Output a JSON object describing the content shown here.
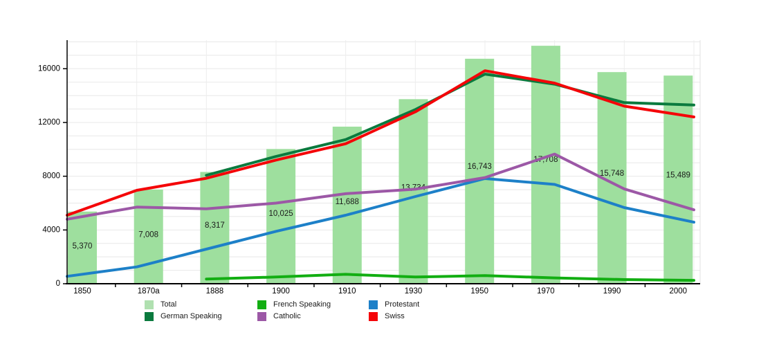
{
  "chart_data": {
    "type": "combo-bar-line",
    "title": "",
    "xlabel": "",
    "ylabel": "",
    "categories": [
      "1850",
      "1870a",
      "1888",
      "1900",
      "1910",
      "1930",
      "1950",
      "1970",
      "1990",
      "2000"
    ],
    "ylim": [
      0,
      18000
    ],
    "yticks": [
      {
        "value": 0,
        "label": "0"
      },
      {
        "value": 4000,
        "label": "4000"
      },
      {
        "value": 8000,
        "label": "8000"
      },
      {
        "value": 12000,
        "label": "12000"
      },
      {
        "value": 16000,
        "label": "16000"
      }
    ],
    "grid": {
      "horizontal_every": 1000,
      "vertical": true
    },
    "bars": {
      "name": "Total",
      "color": "#9edf9e",
      "values": [
        5370,
        7008,
        8317,
        10025,
        11688,
        13734,
        16743,
        17708,
        15748,
        15489
      ],
      "labels": [
        "5,370",
        "7,008",
        "8,317",
        "10,025",
        "11,688",
        "13,734",
        "16,743",
        "17,708",
        "15,748",
        "15,489"
      ]
    },
    "series": [
      {
        "name": "French Speaking",
        "color": "#12ae12",
        "values": [
          null,
          null,
          350,
          500,
          700,
          500,
          600,
          430,
          310,
          250
        ]
      },
      {
        "name": "Protestant",
        "color": "#1d80c8",
        "values": [
          550,
          1250,
          2575,
          3900,
          5100,
          6490,
          7830,
          7390,
          5665,
          4580
        ]
      },
      {
        "name": "Catholic",
        "color": "#9c58a6",
        "values": [
          4800,
          5700,
          5575,
          6000,
          6700,
          7035,
          7900,
          9645,
          7050,
          5500
        ]
      },
      {
        "name": "German Speaking",
        "color": "#0a7a3e",
        "values": [
          null,
          null,
          8070,
          9470,
          10725,
          12960,
          15600,
          14850,
          13475,
          13300
        ]
      },
      {
        "name": "Swiss",
        "color": "#f40408",
        "values": [
          5100,
          6950,
          7850,
          9200,
          10420,
          12790,
          15850,
          14930,
          13215,
          12410
        ]
      }
    ]
  },
  "legend": {
    "items": [
      {
        "label": "Total",
        "color": "#b0e0b0"
      },
      {
        "label": "German Speaking",
        "color": "#0a7a3e"
      },
      {
        "label": "French Speaking",
        "color": "#12ae12"
      },
      {
        "label": "Catholic",
        "color": "#9c58a6"
      },
      {
        "label": "Protestant",
        "color": "#1d80c8"
      },
      {
        "label": "Swiss",
        "color": "#f40408"
      }
    ]
  }
}
